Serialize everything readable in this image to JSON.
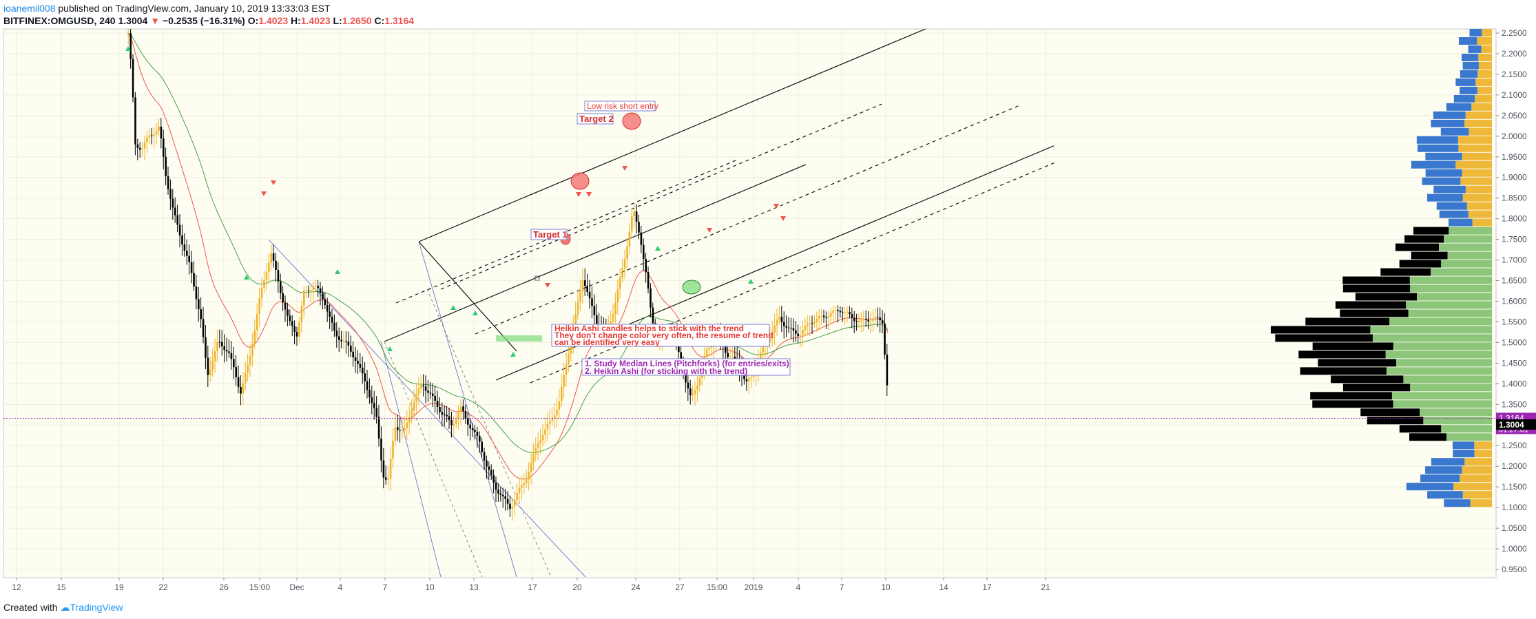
{
  "header": {
    "author": "ioanemil008",
    "published": "published on TradingView.com, January 10, 2019 13:33:03 EST",
    "symbol": "BITFINEX:OMGUSD, 240",
    "last": "1.3004",
    "change": "−0.2535 (−16.31%)",
    "o_label": "O:",
    "o": "1.4023",
    "h_label": "H:",
    "h": "1.4023",
    "l_label": "L:",
    "l": "1.2650",
    "c_label": "C:",
    "c": "1.3164"
  },
  "footer": {
    "created_with": "Created with",
    "brand": "TradingView"
  },
  "colors": {
    "bg": "#fdfdf2",
    "bull": "#f0b429",
    "bear": "#000000",
    "ema_fast": "#ef5350",
    "ema_slow": "#43a047",
    "fork": "#7b7fd6",
    "vp_bull": "#eeb93a",
    "vp_bear": "#3a78d0",
    "vp_green": "#8dc57a",
    "price_line": "#9c27b0"
  },
  "chart_data": {
    "type": "candlestick",
    "ylim": [
      0.93,
      2.26
    ],
    "y_ticks": [
      "2.2500",
      "2.2000",
      "2.1500",
      "2.1000",
      "2.0500",
      "2.0000",
      "1.9500",
      "1.9000",
      "1.8500",
      "1.8000",
      "1.7500",
      "1.7000",
      "1.6500",
      "1.6000",
      "1.5500",
      "1.5000",
      "1.4500",
      "1.4000",
      "1.3500",
      "1.3000",
      "1.2500",
      "1.2000",
      "1.1500",
      "1.1000",
      "1.0500",
      "1.0000",
      "0.9500"
    ],
    "x_ticks": [
      "12",
      "15",
      "19",
      "22",
      "26",
      "15:00",
      "Dec",
      "4",
      "7",
      "10",
      "13",
      "17",
      "20",
      "24",
      "27",
      "15:00",
      "2019",
      "4",
      "7",
      "10",
      "14",
      "17",
      "21"
    ],
    "price_labels": {
      "close": "1.3164",
      "countdown": "01:27:01",
      "last": "1.3004"
    },
    "annotations": {
      "short_entry": "Low risk short entry",
      "target2": "Target 2",
      "target1": "Target 1",
      "heikin_1": "Heikin Ashi candles helps to stick with the trend",
      "heikin_2": "They don't change color very often, the resume of trend",
      "heikin_3": "can be identified very easy",
      "study_1": "1. Study Median Lines (Pitchforks) (for entries/exits)",
      "study_2": "2. Heikin Ashi (for sticking with the trend)"
    }
  }
}
